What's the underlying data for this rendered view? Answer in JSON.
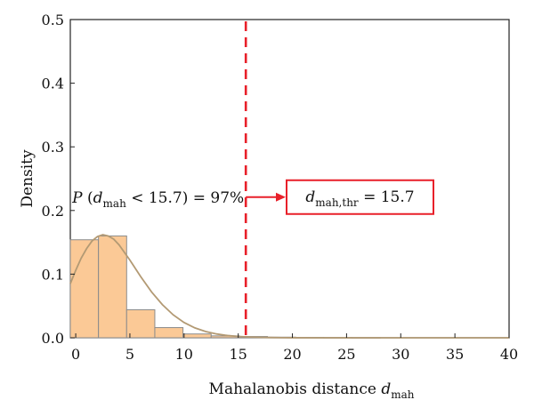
{
  "chart_data": {
    "type": "bar",
    "title": "",
    "xlabel": "Mahalanobis distance ",
    "xlabel_var": "d",
    "xlabel_sub": "mah",
    "ylabel": "Density",
    "xlim": [
      -0.5,
      40
    ],
    "ylim": [
      0,
      0.5
    ],
    "x_ticks": [
      0,
      5,
      10,
      15,
      20,
      25,
      30,
      35,
      40
    ],
    "y_ticks": [
      0.0,
      0.1,
      0.2,
      0.3,
      0.4,
      0.5
    ],
    "y_tick_labels": [
      "0.0",
      "0.1",
      "0.2",
      "0.3",
      "0.4",
      "0.5"
    ],
    "grid": false,
    "legend": "none",
    "bins": [
      {
        "x0": -0.5,
        "x1": 2.1,
        "value": 0.154
      },
      {
        "x0": 2.1,
        "x1": 4.7,
        "value": 0.16
      },
      {
        "x0": 4.7,
        "x1": 7.3,
        "value": 0.044
      },
      {
        "x0": 7.3,
        "x1": 9.9,
        "value": 0.016
      },
      {
        "x0": 9.9,
        "x1": 12.5,
        "value": 0.006
      },
      {
        "x0": 12.5,
        "x1": 15.1,
        "value": 0.003
      },
      {
        "x0": 15.1,
        "x1": 17.7,
        "value": 0.002
      },
      {
        "x0": 17.7,
        "x1": 20.3,
        "value": 0.001
      },
      {
        "x0": 20.3,
        "x1": 22.9,
        "value": 0.0006
      },
      {
        "x0": 22.9,
        "x1": 25.5,
        "value": 0.0004
      },
      {
        "x0": 25.5,
        "x1": 28.1,
        "value": 0.0002
      }
    ],
    "fit_curve": {
      "x": [
        -0.5,
        0,
        0.5,
        1,
        1.5,
        2,
        2.5,
        3,
        3.5,
        4,
        5,
        6,
        7,
        8,
        9,
        10,
        11,
        12,
        13,
        14,
        15,
        16,
        17,
        18,
        19,
        20,
        22,
        24,
        26,
        28,
        30,
        32,
        35,
        38,
        40
      ],
      "y": [
        0.085,
        0.106,
        0.125,
        0.14,
        0.152,
        0.159,
        0.162,
        0.16,
        0.155,
        0.146,
        0.122,
        0.096,
        0.072,
        0.052,
        0.036,
        0.024,
        0.0155,
        0.0098,
        0.006,
        0.0036,
        0.0021,
        0.0012,
        0.0007,
        0.0004,
        0.0002,
        0.0001,
        4e-05,
        1e-05,
        0,
        0,
        0,
        0,
        0,
        0,
        0
      ]
    },
    "threshold": {
      "x": 15.7,
      "label_var": "d",
      "label_sub": "mah,thr",
      "label_value": " = 15.7"
    },
    "probability_annotation": {
      "prefix": "P (",
      "var": "d",
      "sub": "mah",
      "suffix": " < 15.7) = 97%"
    },
    "colors": {
      "bar_fill": "#fbc996",
      "bar_stroke": "#8c8c8c",
      "curve": "#b39a74",
      "threshold": "#e8202a",
      "box": "#e8202a",
      "axis": "#222222"
    }
  }
}
